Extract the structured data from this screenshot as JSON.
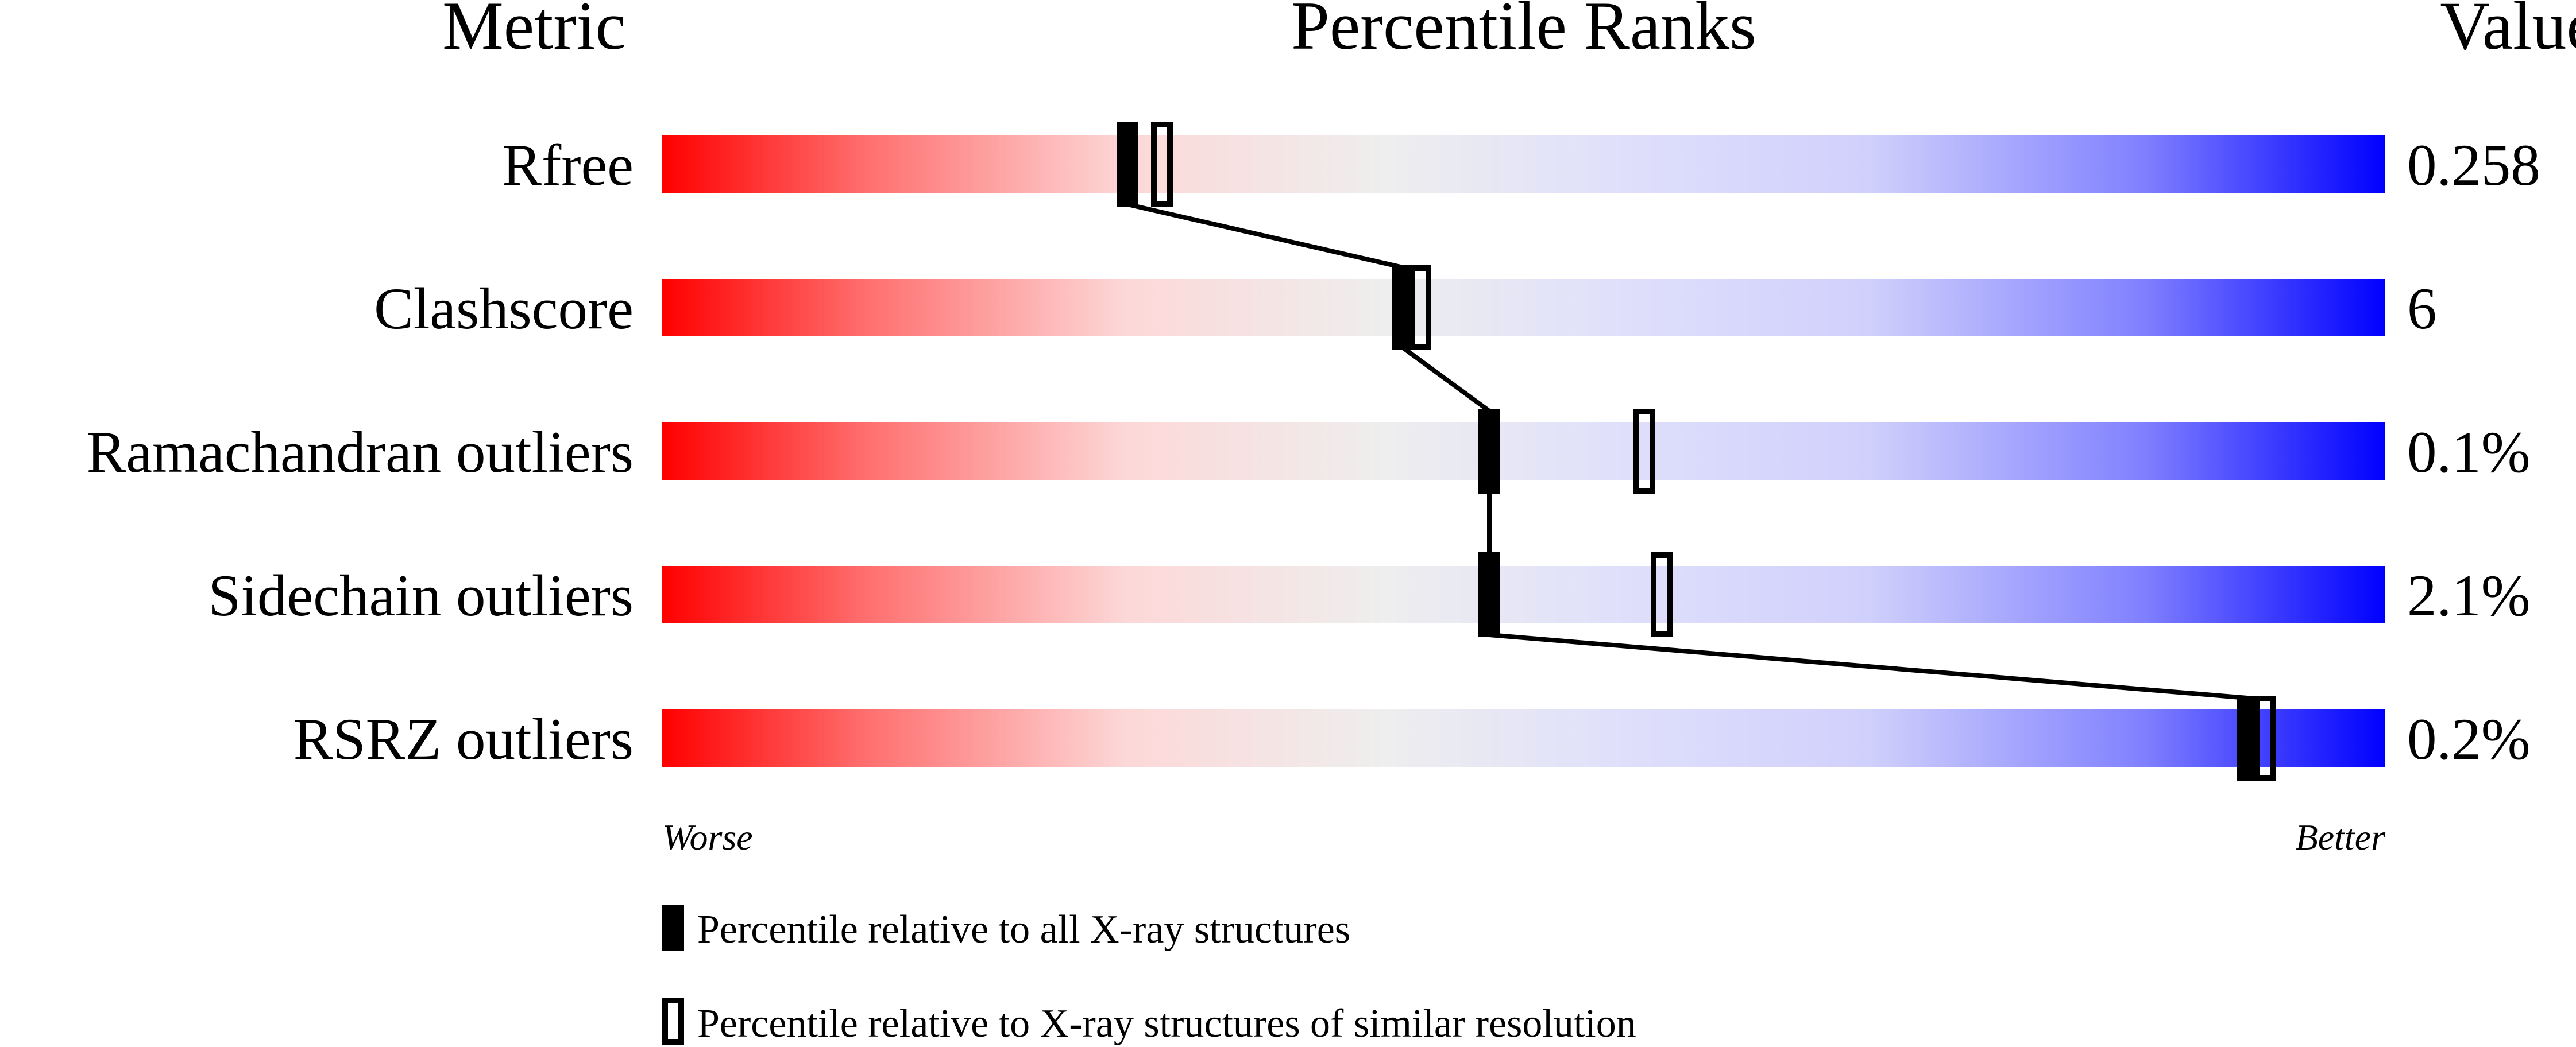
{
  "chart_data": {
    "type": "percentile-bar",
    "headers": {
      "metric": "Metric",
      "ranks": "Percentile Ranks",
      "value": "Value"
    },
    "axis": {
      "min": 0,
      "max": 100,
      "left_label": "Worse",
      "right_label": "Better"
    },
    "rows": [
      {
        "metric": "Rfree",
        "value": "0.258",
        "percentile_all": 27,
        "percentile_similar": 29
      },
      {
        "metric": "Clashscore",
        "value": "6",
        "percentile_all": 43,
        "percentile_similar": 44
      },
      {
        "metric": "Ramachandran outliers",
        "value": "0.1%",
        "percentile_all": 48,
        "percentile_similar": 57
      },
      {
        "metric": "Sidechain outliers",
        "value": "2.1%",
        "percentile_all": 48,
        "percentile_similar": 58
      },
      {
        "metric": "RSRZ outliers",
        "value": "0.2%",
        "percentile_all": 92,
        "percentile_similar": 93
      }
    ],
    "legend": [
      {
        "marker": "filled",
        "label": "Percentile relative to all X-ray structures"
      },
      {
        "marker": "hollow",
        "label": "Percentile relative to X-ray structures of similar resolution"
      }
    ],
    "colors": {
      "worse": "#ff0000",
      "middle": "#eeeeee",
      "better": "#0000ff"
    }
  }
}
